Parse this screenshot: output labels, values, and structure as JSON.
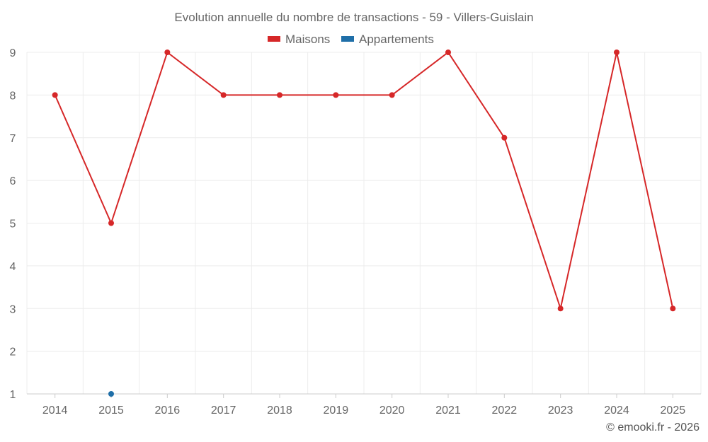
{
  "chart_data": {
    "type": "line",
    "title": "Evolution annuelle du nombre de transactions - 59 - Villers-Guislain",
    "categories": [
      "2014",
      "2015",
      "2016",
      "2017",
      "2018",
      "2019",
      "2020",
      "2021",
      "2022",
      "2023",
      "2024",
      "2025"
    ],
    "ylim": [
      1,
      9
    ],
    "yticks": [
      "1",
      "2",
      "3",
      "4",
      "5",
      "6",
      "7",
      "8",
      "9"
    ],
    "grid": true,
    "legend_position": "top-center",
    "series": [
      {
        "name": "Maisons",
        "color": "#d62728",
        "values": [
          8,
          5,
          9,
          8,
          8,
          8,
          8,
          9,
          7,
          3,
          9,
          3
        ]
      },
      {
        "name": "Appartements",
        "color": "#1f6fa8",
        "values": [
          null,
          1,
          null,
          null,
          null,
          null,
          null,
          null,
          null,
          null,
          null,
          null
        ]
      }
    ]
  },
  "credit": "© emooki.fr - 2026"
}
